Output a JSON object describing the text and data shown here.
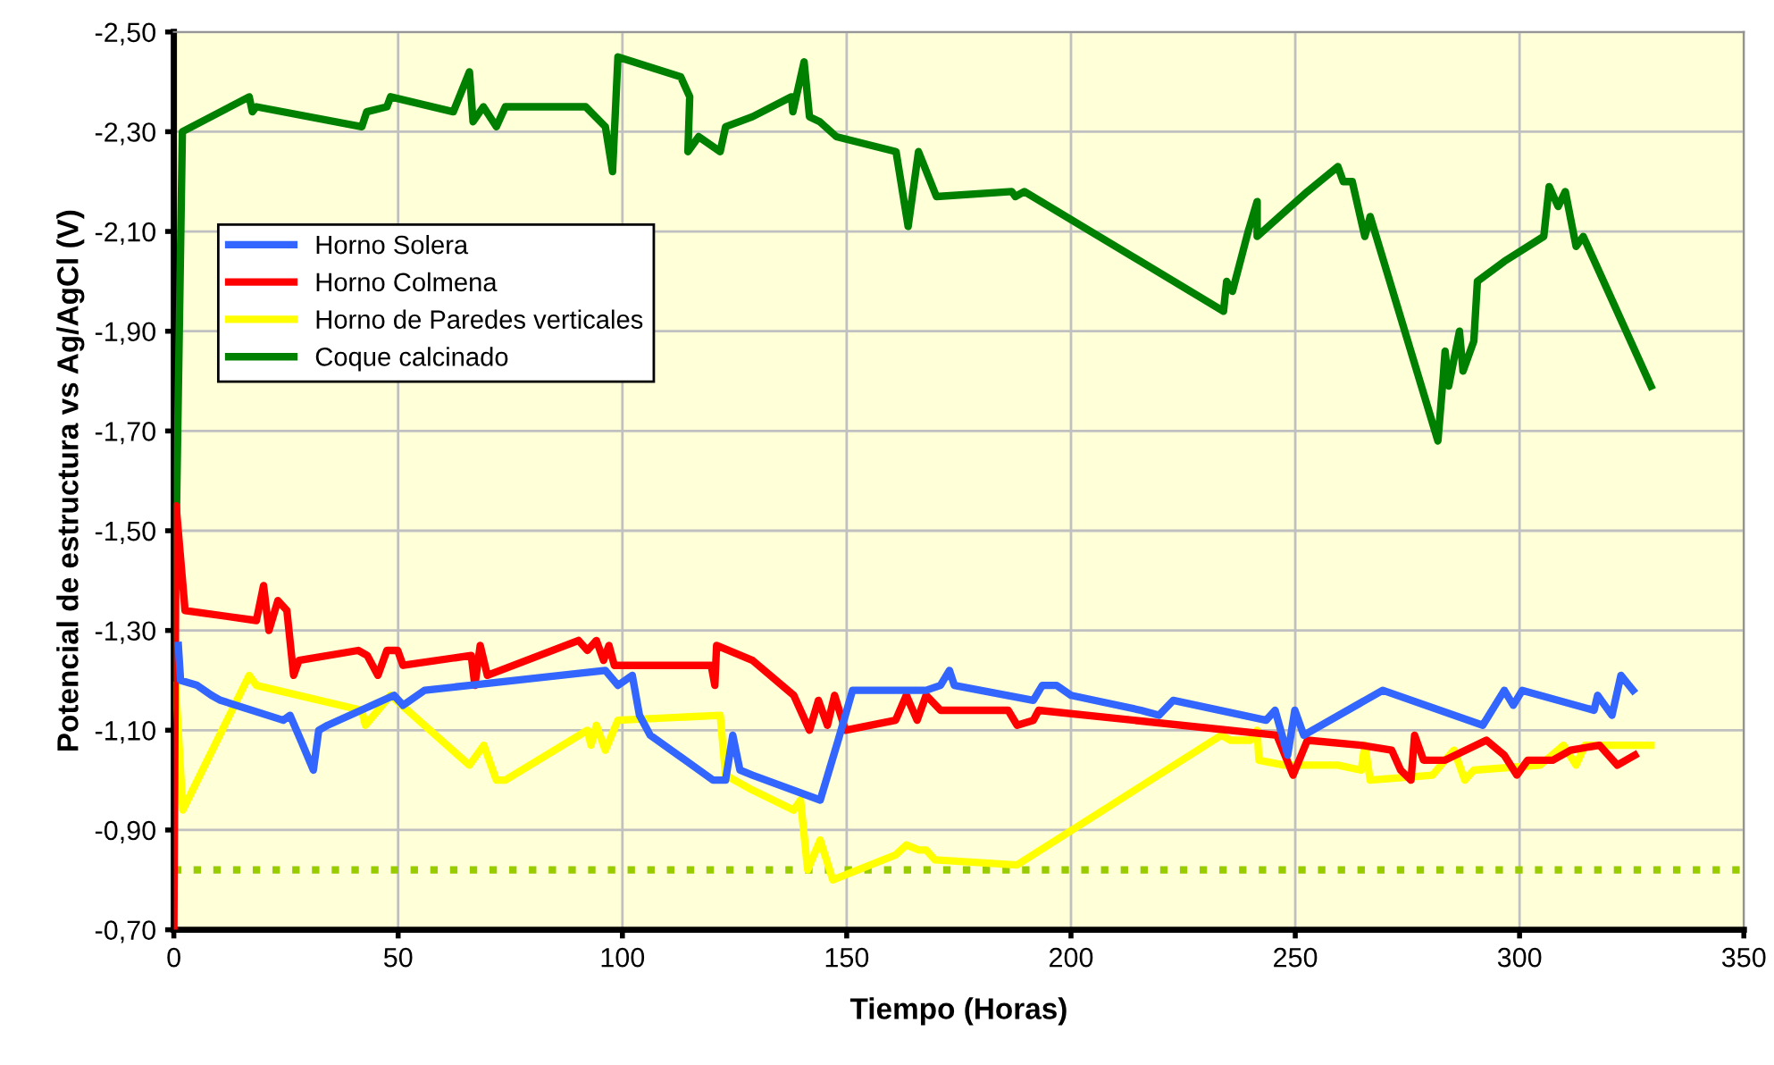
{
  "chart_data": {
    "type": "line",
    "xlabel": "Tiempo (Horas)",
    "ylabel": "Potencial de estructura vs Ag/AgCl (V)",
    "xlim": [
      0,
      350
    ],
    "xticks": [
      0,
      50,
      100,
      150,
      200,
      250,
      300,
      350
    ],
    "ylim": [
      -0.7,
      -2.5
    ],
    "yticks": [
      {
        "value": -0.7,
        "label": "-0,70"
      },
      {
        "value": -0.9,
        "label": "-0,90"
      },
      {
        "value": -1.1,
        "label": "-1,10"
      },
      {
        "value": -1.3,
        "label": "-1,30"
      },
      {
        "value": -1.5,
        "label": "-1,50"
      },
      {
        "value": -1.7,
        "label": "-1,70"
      },
      {
        "value": -1.9,
        "label": "-1,90"
      },
      {
        "value": -2.1,
        "label": "-2,10"
      },
      {
        "value": -2.3,
        "label": "-2,30"
      },
      {
        "value": -2.5,
        "label": "-2,50"
      }
    ],
    "grid": true,
    "legend": "top left",
    "marker": "none",
    "line_style": "solid",
    "ref_lines": [
      {
        "axis": "y",
        "value": -0.82,
        "color": "#99cc00",
        "line_style": "dotted"
      }
    ],
    "series": [
      {
        "name": "Horno Solera",
        "color": "#3366ff",
        "x": [
          1,
          1.5,
          5.2,
          8.4,
          10.4,
          24.4,
          25.9,
          28.3,
          31.1,
          32.3,
          34.3,
          49.1,
          51.1,
          55.9,
          96.2,
          99,
          102.2,
          103.8,
          106.2,
          120.2,
          123,
          124.6,
          126.2,
          129,
          144.1,
          148.1,
          151.3,
          167.7,
          170.9,
          172.9,
          174,
          191.6,
          193.6,
          196.8,
          200,
          215.6,
          219.6,
          222.8,
          243.5,
          245.5,
          248.3,
          249.9,
          251.9,
          269.5,
          291.8,
          296.6,
          298.6,
          300.6,
          316.6,
          317.4,
          320.6,
          322.6,
          325.3
        ],
        "values": [
          -1.27,
          -1.2,
          -1.19,
          -1.17,
          -1.16,
          -1.12,
          -1.13,
          -1.08,
          -1.02,
          -1.1,
          -1.11,
          -1.17,
          -1.15,
          -1.18,
          -1.22,
          -1.19,
          -1.21,
          -1.13,
          -1.09,
          -1.0,
          -1.0,
          -1.09,
          -1.02,
          -1.01,
          -0.96,
          -1.08,
          -1.18,
          -1.18,
          -1.19,
          -1.22,
          -1.19,
          -1.16,
          -1.19,
          -1.19,
          -1.17,
          -1.14,
          -1.13,
          -1.16,
          -1.12,
          -1.14,
          -1.05,
          -1.14,
          -1.09,
          -1.18,
          -1.11,
          -1.18,
          -1.15,
          -1.18,
          -1.14,
          -1.17,
          -1.13,
          -1.21,
          -1.18
        ]
      },
      {
        "name": "Horno Colmena",
        "color": "#ff0000",
        "x": [
          0,
          0.5,
          2.5,
          18.4,
          20,
          21.2,
          23.2,
          25.2,
          26.7,
          27.9,
          41.1,
          43.1,
          45.5,
          47.5,
          49.9,
          51.1,
          66.3,
          67.1,
          68.3,
          69.9,
          90.2,
          92.2,
          94.2,
          95.8,
          97,
          98.2,
          119.8,
          120.6,
          121,
          129,
          138.2,
          141.7,
          143.7,
          145.7,
          147.3,
          149.7,
          160.9,
          163.3,
          165.7,
          167.7,
          170.9,
          186,
          188,
          191.6,
          192.8,
          245.9,
          249.5,
          252.7,
          264.7,
          271.5,
          273.5,
          275.8,
          276.6,
          278.6,
          283.4,
          292.6,
          296.6,
          299.4,
          301.8,
          307.4,
          311.4,
          317.8,
          321.8,
          325.7
        ],
        "values": [
          -0.7,
          -1.55,
          -1.34,
          -1.32,
          -1.39,
          -1.3,
          -1.36,
          -1.34,
          -1.21,
          -1.24,
          -1.26,
          -1.25,
          -1.21,
          -1.26,
          -1.26,
          -1.23,
          -1.25,
          -1.19,
          -1.27,
          -1.21,
          -1.28,
          -1.26,
          -1.28,
          -1.24,
          -1.27,
          -1.23,
          -1.23,
          -1.19,
          -1.27,
          -1.24,
          -1.17,
          -1.1,
          -1.16,
          -1.11,
          -1.17,
          -1.1,
          -1.12,
          -1.17,
          -1.12,
          -1.17,
          -1.14,
          -1.14,
          -1.11,
          -1.12,
          -1.14,
          -1.09,
          -1.01,
          -1.08,
          -1.07,
          -1.06,
          -1.02,
          -1.0,
          -1.09,
          -1.04,
          -1.04,
          -1.08,
          -1.05,
          -1.01,
          -1.04,
          -1.04,
          -1.06,
          -1.07,
          -1.03,
          -1.05
        ]
      },
      {
        "name": "Horno de Paredes verticales",
        "color": "#ffff00",
        "x": [
          0.4,
          2,
          16.8,
          18.4,
          41.9,
          42.7,
          48.3,
          65.9,
          69.1,
          71.9,
          73.9,
          92.2,
          93,
          94.2,
          96.2,
          99,
          121.8,
          123,
          129,
          138.2,
          139.7,
          141.3,
          144.1,
          146.9,
          160.9,
          163.3,
          166.1,
          167.7,
          169.7,
          188,
          233.5,
          235.5,
          240,
          241.5,
          241.9,
          247.5,
          259.5,
          264.7,
          265.5,
          266.7,
          280.6,
          283.4,
          285.4,
          287.8,
          289.8,
          304.6,
          309.8,
          312.6,
          314.6,
          329.3
        ],
        "values": [
          -1.19,
          -0.94,
          -1.21,
          -1.19,
          -1.14,
          -1.11,
          -1.17,
          -1.03,
          -1.07,
          -1.0,
          -1.0,
          -1.1,
          -1.07,
          -1.11,
          -1.06,
          -1.12,
          -1.13,
          -1.01,
          -0.98,
          -0.94,
          -0.96,
          -0.82,
          -0.88,
          -0.8,
          -0.85,
          -0.87,
          -0.86,
          -0.86,
          -0.84,
          -0.83,
          -1.09,
          -1.08,
          -1.08,
          -1.1,
          -1.04,
          -1.03,
          -1.03,
          -1.02,
          -1.07,
          -1.0,
          -1.01,
          -1.04,
          -1.06,
          -1.0,
          -1.02,
          -1.03,
          -1.07,
          -1.03,
          -1.07,
          -1.07
        ]
      },
      {
        "name": "Coque calcinado",
        "color": "#008000",
        "x": [
          0,
          1.9,
          16.8,
          17.5,
          18.4,
          41.9,
          43,
          47.5,
          48.3,
          62.3,
          65.9,
          66.7,
          69,
          71.9,
          73.9,
          91.8,
          96.2,
          97.8,
          99,
          113,
          115,
          114.6,
          117,
          121.8,
          123,
          129,
          137.7,
          138,
          140.5,
          141.7,
          144,
          147.7,
          161,
          163.7,
          166,
          170,
          186.8,
          187.6,
          189.6,
          234,
          234.7,
          236,
          239.5,
          241.5,
          241.5,
          252.7,
          259.5,
          260.7,
          262.7,
          265.5,
          266.7,
          281.8,
          283,
          283.4,
          284.2,
          286.6,
          287.4,
          289.8,
          290.6,
          296.6,
          305.4,
          306.6,
          308.6,
          310.2,
          312.6,
          314.2,
          329.3
        ],
        "values": [
          -1.2,
          -2.3,
          -2.37,
          -2.34,
          -2.35,
          -2.31,
          -2.34,
          -2.35,
          -2.37,
          -2.34,
          -2.42,
          -2.32,
          -2.35,
          -2.31,
          -2.35,
          -2.35,
          -2.31,
          -2.22,
          -2.45,
          -2.41,
          -2.37,
          -2.26,
          -2.29,
          -2.26,
          -2.31,
          -2.33,
          -2.37,
          -2.34,
          -2.44,
          -2.33,
          -2.32,
          -2.29,
          -2.26,
          -2.11,
          -2.26,
          -2.17,
          -2.18,
          -2.17,
          -2.18,
          -1.94,
          -2.0,
          -1.98,
          -2.1,
          -2.16,
          -2.09,
          -2.18,
          -2.23,
          -2.2,
          -2.2,
          -2.09,
          -2.13,
          -1.68,
          -1.81,
          -1.86,
          -1.79,
          -1.9,
          -1.82,
          -1.88,
          -2.0,
          -2.04,
          -2.09,
          -2.19,
          -2.15,
          -2.18,
          -2.07,
          -2.09,
          -1.79
        ]
      }
    ]
  }
}
